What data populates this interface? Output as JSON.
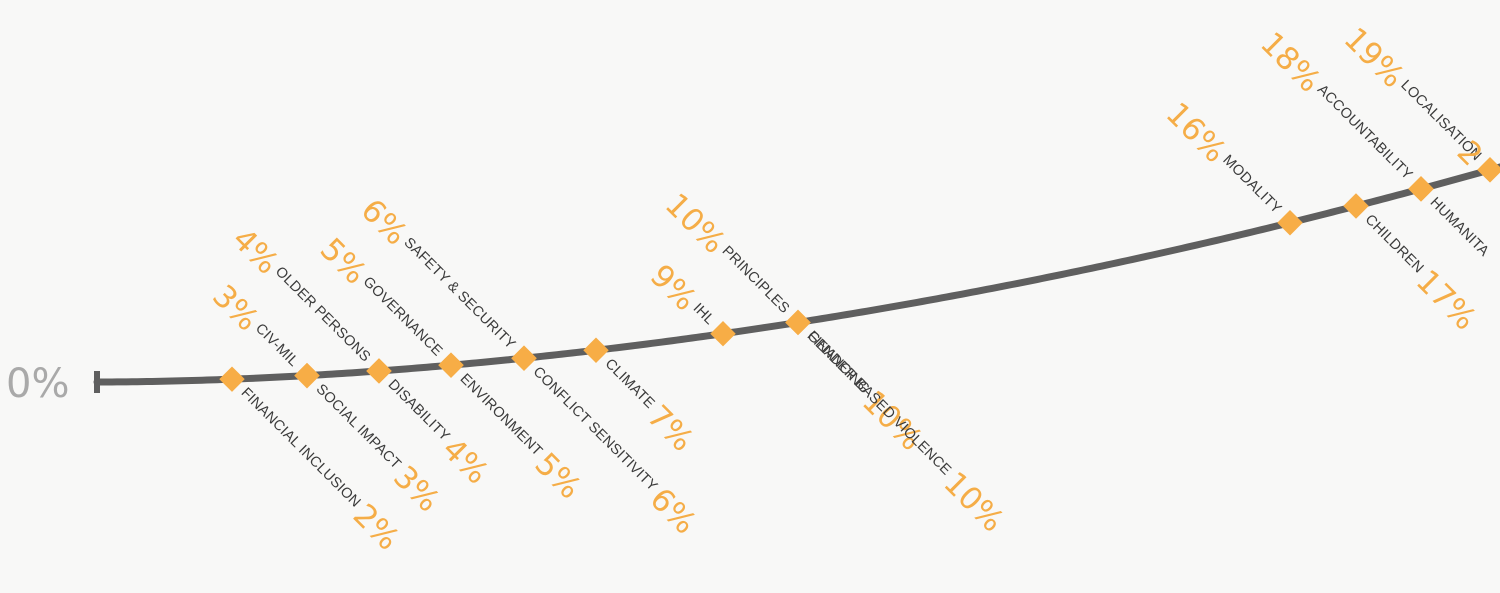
{
  "colors": {
    "background": "#f8f8f7",
    "line": "#5f5f5f",
    "marker": "#f7ad46",
    "percent_text": "#f5ad47",
    "label_text": "#3b3b3b",
    "axis_text": "#a9a9a9"
  },
  "chart_data": {
    "type": "line",
    "axis_start_label": "0%",
    "points": [
      {
        "topic": "FINANCIAL INCLUSION",
        "value": 2,
        "unit": "%",
        "label_side": "below"
      },
      {
        "topic": "CIV-MIL",
        "value": 3,
        "unit": "%",
        "label_side": "above"
      },
      {
        "topic": "SOCIAL IMPACT",
        "value": 3,
        "unit": "%",
        "label_side": "below"
      },
      {
        "topic": "OLDER PERSONS",
        "value": 4,
        "unit": "%",
        "label_side": "above"
      },
      {
        "topic": "DISABILITY",
        "value": 4,
        "unit": "%",
        "label_side": "below"
      },
      {
        "topic": "GOVERNANCE",
        "value": 5,
        "unit": "%",
        "label_side": "above"
      },
      {
        "topic": "ENVIRONMENT",
        "value": 5,
        "unit": "%",
        "label_side": "below"
      },
      {
        "topic": "SAFETY & SECURITY",
        "value": 6,
        "unit": "%",
        "label_side": "above"
      },
      {
        "topic": "CONFLICT SENSITIVITY",
        "value": 6,
        "unit": "%",
        "label_side": "below"
      },
      {
        "topic": "CLIMATE",
        "value": 7,
        "unit": "%",
        "label_side": "below"
      },
      {
        "topic": "IHL",
        "value": 9,
        "unit": "%",
        "label_side": "above"
      },
      {
        "topic": "PRINCIPLES",
        "value": 10,
        "unit": "%",
        "label_side": "above"
      },
      {
        "topic": "FINANCING",
        "value": 10,
        "unit": "%",
        "label_side": "below"
      },
      {
        "topic": "GENDER BASED VIOLENCE",
        "value": 10,
        "unit": "%",
        "label_side": "below"
      },
      {
        "topic": "MODALITY",
        "value": 16,
        "unit": "%",
        "label_side": "above"
      },
      {
        "topic": "CHILDREN",
        "value": 17,
        "unit": "%",
        "label_side": "below"
      },
      {
        "topic": "ACCOUNTABILITY",
        "value": 18,
        "unit": "%",
        "label_side": "above"
      },
      {
        "topic": "HUMANITA",
        "value": null,
        "unit": "",
        "label_side": "below"
      },
      {
        "topic": "LOCALISATION",
        "value": 19,
        "unit": "%",
        "label_side": "above"
      },
      {
        "topic": "",
        "value": 2,
        "unit": "",
        "label_side": "above"
      }
    ]
  }
}
